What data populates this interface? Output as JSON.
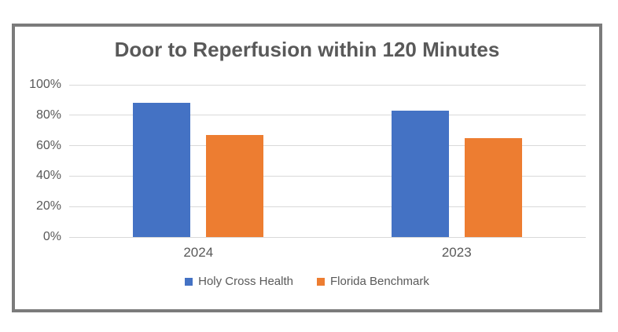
{
  "window": {
    "background": "#ffffff",
    "frame_border_color": "#7b7b7b"
  },
  "chart_data": {
    "type": "bar",
    "title": "Door to Reperfusion within 120 Minutes",
    "categories": [
      "2024",
      "2023"
    ],
    "series": [
      {
        "name": "Holy Cross Health",
        "color": "#4472C4",
        "values": [
          88,
          83
        ]
      },
      {
        "name": "Florida Benchmark",
        "color": "#ED7D31",
        "values": [
          67,
          65
        ]
      }
    ],
    "xlabel": "",
    "ylabel": "",
    "ylim": [
      0,
      100
    ],
    "yticks": [
      0,
      20,
      40,
      60,
      80,
      100
    ],
    "ytick_labels": [
      "0%",
      "20%",
      "40%",
      "60%",
      "80%",
      "100%"
    ],
    "grid": true,
    "gridline_color": "#d9d9d9",
    "axis_text_color": "#595959",
    "title_color": "#595959",
    "legend_position": "bottom"
  }
}
